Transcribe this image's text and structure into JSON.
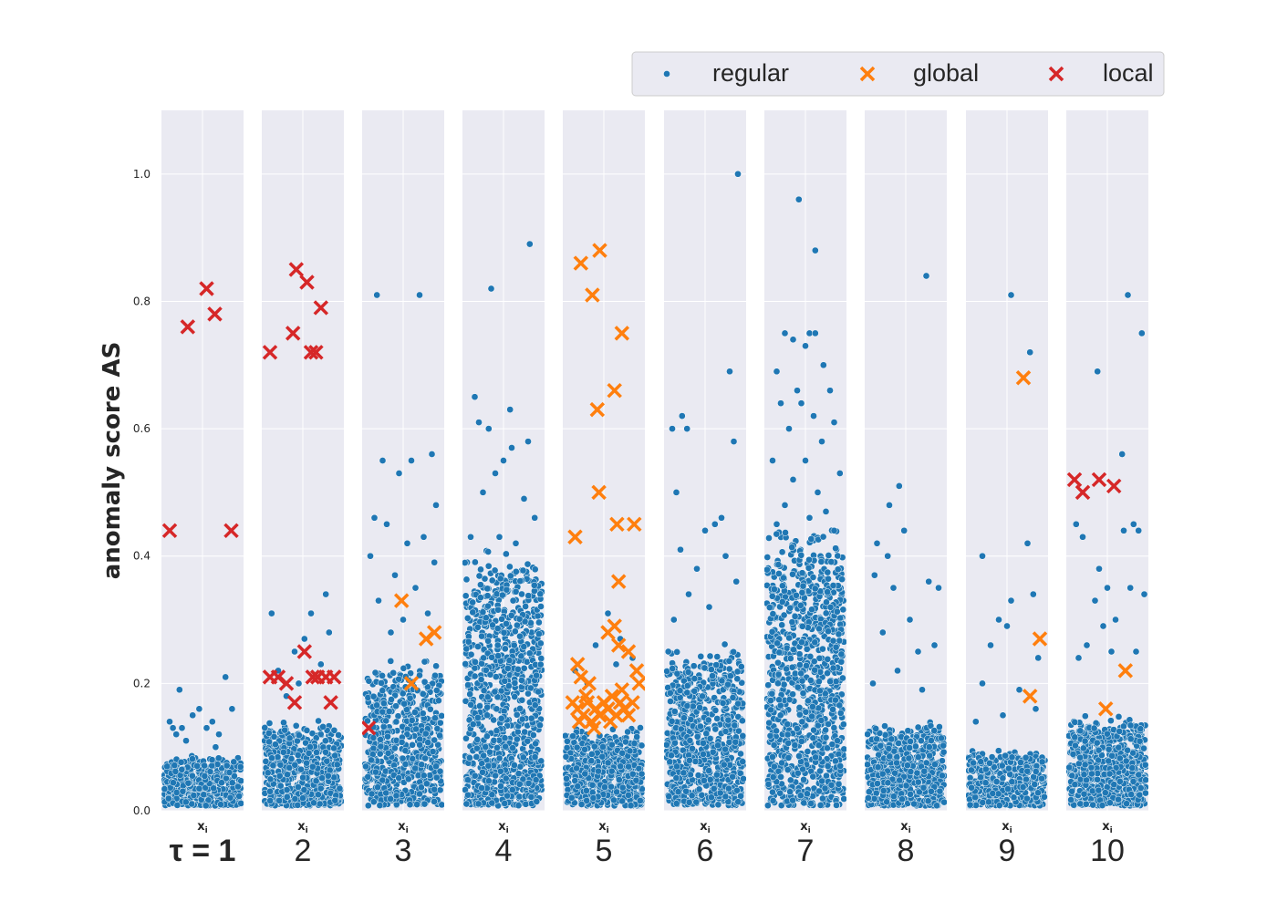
{
  "chart_data": {
    "type": "scatter",
    "ylabel": "anomaly score AS",
    "panel_xlabel": "x",
    "panel_xlabel_sub": "i",
    "ylim": [
      0,
      1.1
    ],
    "yticks": [
      "0.0",
      "0.2",
      "0.4",
      "0.6",
      "0.8",
      "1.0"
    ],
    "ytick_values": [
      0,
      0.2,
      0.4,
      0.6,
      0.8,
      1.0
    ],
    "grid": true,
    "legend": {
      "placement": "top-right",
      "entries": [
        {
          "label": "regular",
          "marker": "dot",
          "color": "#1f77b4"
        },
        {
          "label": "global",
          "marker": "x",
          "color": "#ff7f0e"
        },
        {
          "label": "local",
          "marker": "x",
          "color": "#d62728"
        }
      ]
    },
    "panels": [
      {
        "label": "τ = 1",
        "regular": {
          "count": 520,
          "bulk_max": 0.08,
          "tail": [
            [
              0.1,
              0.14
            ],
            [
              0.14,
              0.13
            ],
            [
              0.18,
              0.12
            ],
            [
              0.25,
              0.13
            ],
            [
              0.38,
              0.15
            ],
            [
              0.46,
              0.16
            ],
            [
              0.55,
              0.13
            ],
            [
              0.62,
              0.14
            ],
            [
              0.7,
              0.12
            ],
            [
              0.78,
              0.21
            ],
            [
              0.86,
              0.16
            ],
            [
              0.3,
              0.11
            ],
            [
              0.66,
              0.1
            ],
            [
              0.22,
              0.19
            ]
          ]
        },
        "global": [],
        "local": [
          [
            0.1,
            0.44
          ],
          [
            0.32,
            0.76
          ],
          [
            0.55,
            0.82
          ],
          [
            0.65,
            0.78
          ],
          [
            0.85,
            0.44
          ]
        ]
      },
      {
        "label": "2",
        "regular": {
          "count": 560,
          "bulk_max": 0.13,
          "tail": [
            [
              0.12,
              0.31
            ],
            [
              0.2,
              0.22
            ],
            [
              0.45,
              0.2
            ],
            [
              0.52,
              0.27
            ],
            [
              0.72,
              0.23
            ],
            [
              0.78,
              0.34
            ],
            [
              0.82,
              0.28
            ],
            [
              0.6,
              0.31
            ],
            [
              0.4,
              0.25
            ],
            [
              0.3,
              0.18
            ]
          ]
        },
        "global": [],
        "local": [
          [
            0.1,
            0.72
          ],
          [
            0.42,
            0.85
          ],
          [
            0.55,
            0.83
          ],
          [
            0.38,
            0.75
          ],
          [
            0.6,
            0.72
          ],
          [
            0.66,
            0.72
          ],
          [
            0.72,
            0.79
          ],
          [
            0.1,
            0.21
          ],
          [
            0.2,
            0.21
          ],
          [
            0.3,
            0.2
          ],
          [
            0.4,
            0.17
          ],
          [
            0.52,
            0.25
          ],
          [
            0.62,
            0.21
          ],
          [
            0.68,
            0.21
          ],
          [
            0.78,
            0.21
          ],
          [
            0.88,
            0.21
          ],
          [
            0.84,
            0.17
          ]
        ]
      },
      {
        "label": "3",
        "regular": {
          "count": 600,
          "bulk_max": 0.22,
          "tail": [
            [
              0.18,
              0.81
            ],
            [
              0.7,
              0.81
            ],
            [
              0.25,
              0.55
            ],
            [
              0.45,
              0.53
            ],
            [
              0.85,
              0.56
            ],
            [
              0.6,
              0.55
            ],
            [
              0.9,
              0.48
            ],
            [
              0.15,
              0.46
            ],
            [
              0.3,
              0.45
            ],
            [
              0.55,
              0.42
            ],
            [
              0.75,
              0.43
            ],
            [
              0.1,
              0.4
            ],
            [
              0.4,
              0.37
            ],
            [
              0.65,
              0.35
            ],
            [
              0.2,
              0.33
            ],
            [
              0.5,
              0.3
            ],
            [
              0.8,
              0.31
            ],
            [
              0.35,
              0.28
            ],
            [
              0.88,
              0.39
            ]
          ]
        },
        "global": [
          [
            0.48,
            0.33
          ],
          [
            0.6,
            0.2
          ],
          [
            0.78,
            0.27
          ],
          [
            0.88,
            0.28
          ]
        ],
        "local": [
          [
            0.08,
            0.13
          ]
        ]
      },
      {
        "label": "4",
        "regular": {
          "count": 900,
          "bulk_max": 0.38,
          "tail": [
            [
              0.82,
              0.89
            ],
            [
              0.35,
              0.82
            ],
            [
              0.15,
              0.65
            ],
            [
              0.58,
              0.63
            ],
            [
              0.2,
              0.61
            ],
            [
              0.32,
              0.6
            ],
            [
              0.8,
              0.58
            ],
            [
              0.6,
              0.57
            ],
            [
              0.5,
              0.55
            ],
            [
              0.4,
              0.53
            ],
            [
              0.25,
              0.5
            ],
            [
              0.75,
              0.49
            ],
            [
              0.88,
              0.46
            ],
            [
              0.1,
              0.43
            ],
            [
              0.45,
              0.43
            ],
            [
              0.65,
              0.42
            ]
          ]
        },
        "global": [],
        "local": []
      },
      {
        "label": "5",
        "regular": {
          "count": 620,
          "bulk_max": 0.12,
          "tail": [
            [
              0.15,
              0.22
            ],
            [
              0.3,
              0.2
            ],
            [
              0.55,
              0.31
            ],
            [
              0.7,
              0.27
            ],
            [
              0.85,
              0.24
            ],
            [
              0.4,
              0.26
            ],
            [
              0.65,
              0.23
            ]
          ]
        },
        "global": [
          [
            0.15,
            0.43
          ],
          [
            0.22,
            0.86
          ],
          [
            0.36,
            0.81
          ],
          [
            0.45,
            0.88
          ],
          [
            0.72,
            0.75
          ],
          [
            0.42,
            0.63
          ],
          [
            0.63,
            0.66
          ],
          [
            0.44,
            0.5
          ],
          [
            0.66,
            0.45
          ],
          [
            0.87,
            0.45
          ],
          [
            0.68,
            0.36
          ],
          [
            0.55,
            0.28
          ],
          [
            0.63,
            0.29
          ],
          [
            0.68,
            0.26
          ],
          [
            0.8,
            0.25
          ],
          [
            0.18,
            0.23
          ],
          [
            0.22,
            0.21
          ],
          [
            0.32,
            0.2
          ],
          [
            0.9,
            0.22
          ],
          [
            0.93,
            0.2
          ],
          [
            0.12,
            0.17
          ],
          [
            0.18,
            0.16
          ],
          [
            0.25,
            0.15
          ],
          [
            0.3,
            0.17
          ],
          [
            0.35,
            0.14
          ],
          [
            0.4,
            0.16
          ],
          [
            0.45,
            0.15
          ],
          [
            0.5,
            0.17
          ],
          [
            0.55,
            0.16
          ],
          [
            0.6,
            0.18
          ],
          [
            0.65,
            0.15
          ],
          [
            0.7,
            0.17
          ],
          [
            0.75,
            0.16
          ],
          [
            0.8,
            0.15
          ],
          [
            0.85,
            0.17
          ],
          [
            0.2,
            0.14
          ],
          [
            0.28,
            0.18
          ],
          [
            0.38,
            0.13
          ],
          [
            0.58,
            0.14
          ],
          [
            0.72,
            0.19
          ]
        ],
        "local": []
      },
      {
        "label": "6",
        "regular": {
          "count": 700,
          "bulk_max": 0.24,
          "tail": [
            [
              0.9,
              1.0
            ],
            [
              0.8,
              0.69
            ],
            [
              0.85,
              0.58
            ],
            [
              0.1,
              0.6
            ],
            [
              0.22,
              0.62
            ],
            [
              0.28,
              0.6
            ],
            [
              0.15,
              0.5
            ],
            [
              0.7,
              0.46
            ],
            [
              0.5,
              0.44
            ],
            [
              0.2,
              0.41
            ],
            [
              0.62,
              0.45
            ],
            [
              0.4,
              0.38
            ],
            [
              0.75,
              0.4
            ],
            [
              0.3,
              0.34
            ],
            [
              0.88,
              0.36
            ],
            [
              0.55,
              0.32
            ],
            [
              0.12,
              0.3
            ]
          ]
        },
        "global": [],
        "local": []
      },
      {
        "label": "7",
        "regular": {
          "count": 950,
          "bulk_max": 0.42,
          "tail": [
            [
              0.42,
              0.96
            ],
            [
              0.62,
              0.88
            ],
            [
              0.55,
              0.75
            ],
            [
              0.25,
              0.75
            ],
            [
              0.35,
              0.74
            ],
            [
              0.5,
              0.73
            ],
            [
              0.62,
              0.75
            ],
            [
              0.72,
              0.7
            ],
            [
              0.15,
              0.69
            ],
            [
              0.4,
              0.66
            ],
            [
              0.8,
              0.66
            ],
            [
              0.45,
              0.64
            ],
            [
              0.2,
              0.64
            ],
            [
              0.6,
              0.62
            ],
            [
              0.3,
              0.6
            ],
            [
              0.85,
              0.61
            ],
            [
              0.7,
              0.58
            ],
            [
              0.1,
              0.55
            ],
            [
              0.5,
              0.55
            ],
            [
              0.92,
              0.53
            ],
            [
              0.35,
              0.52
            ],
            [
              0.65,
              0.5
            ],
            [
              0.25,
              0.48
            ],
            [
              0.75,
              0.47
            ],
            [
              0.55,
              0.46
            ],
            [
              0.15,
              0.45
            ],
            [
              0.85,
              0.44
            ]
          ]
        },
        "global": [],
        "local": []
      },
      {
        "label": "8",
        "regular": {
          "count": 620,
          "bulk_max": 0.13,
          "tail": [
            [
              0.75,
              0.84
            ],
            [
              0.42,
              0.51
            ],
            [
              0.3,
              0.48
            ],
            [
              0.15,
              0.42
            ],
            [
              0.48,
              0.44
            ],
            [
              0.28,
              0.4
            ],
            [
              0.12,
              0.37
            ],
            [
              0.35,
              0.35
            ],
            [
              0.78,
              0.36
            ],
            [
              0.9,
              0.35
            ],
            [
              0.55,
              0.3
            ],
            [
              0.22,
              0.28
            ],
            [
              0.65,
              0.25
            ],
            [
              0.85,
              0.26
            ],
            [
              0.4,
              0.22
            ],
            [
              0.1,
              0.2
            ],
            [
              0.7,
              0.19
            ]
          ]
        },
        "global": [],
        "local": []
      },
      {
        "label": "9",
        "regular": {
          "count": 450,
          "bulk_max": 0.09,
          "tail": [
            [
              0.55,
              0.81
            ],
            [
              0.78,
              0.72
            ],
            [
              0.2,
              0.4
            ],
            [
              0.75,
              0.42
            ],
            [
              0.82,
              0.34
            ],
            [
              0.55,
              0.33
            ],
            [
              0.4,
              0.3
            ],
            [
              0.5,
              0.29
            ],
            [
              0.3,
              0.26
            ],
            [
              0.88,
              0.24
            ],
            [
              0.2,
              0.2
            ],
            [
              0.65,
              0.19
            ],
            [
              0.12,
              0.14
            ],
            [
              0.45,
              0.15
            ],
            [
              0.85,
              0.16
            ]
          ]
        },
        "global": [
          [
            0.7,
            0.68
          ],
          [
            0.78,
            0.18
          ],
          [
            0.9,
            0.27
          ]
        ],
        "local": []
      },
      {
        "label": "10",
        "regular": {
          "count": 620,
          "bulk_max": 0.14,
          "tail": [
            [
              0.75,
              0.81
            ],
            [
              0.92,
              0.75
            ],
            [
              0.38,
              0.69
            ],
            [
              0.12,
              0.45
            ],
            [
              0.2,
              0.43
            ],
            [
              0.68,
              0.56
            ],
            [
              0.7,
              0.44
            ],
            [
              0.82,
              0.45
            ],
            [
              0.88,
              0.44
            ],
            [
              0.95,
              0.34
            ],
            [
              0.4,
              0.38
            ],
            [
              0.5,
              0.35
            ],
            [
              0.78,
              0.35
            ],
            [
              0.35,
              0.33
            ],
            [
              0.45,
              0.29
            ],
            [
              0.6,
              0.3
            ],
            [
              0.25,
              0.26
            ],
            [
              0.85,
              0.25
            ],
            [
              0.15,
              0.24
            ],
            [
              0.55,
              0.25
            ]
          ]
        },
        "global": [
          [
            0.48,
            0.16
          ],
          [
            0.72,
            0.22
          ]
        ],
        "local": [
          [
            0.1,
            0.52
          ],
          [
            0.2,
            0.5
          ],
          [
            0.4,
            0.52
          ],
          [
            0.58,
            0.51
          ]
        ]
      }
    ]
  }
}
